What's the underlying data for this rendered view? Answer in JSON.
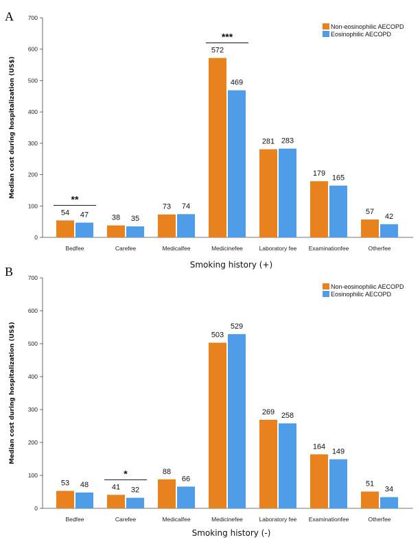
{
  "colors": {
    "non_eosinophilic": "#E8821E",
    "eosinophilic": "#4F9DE8"
  },
  "chart_data": [
    {
      "panel": "A",
      "type": "bar",
      "categories": [
        "Bedfee",
        "Carefee",
        "Medicalfee",
        "Medicinefee",
        "Laboratory fee",
        "Examinationfee",
        "Otherfee"
      ],
      "series": [
        {
          "name": "Non-eosinophilic AECOPD",
          "values": [
            54,
            38,
            73,
            572,
            281,
            179,
            57
          ]
        },
        {
          "name": "Eosinophilic AECOPD",
          "values": [
            47,
            35,
            74,
            469,
            283,
            165,
            42
          ]
        }
      ],
      "xlabel": "Smoking history (+)",
      "ylabel": "Median cost during hospitalization (US$)",
      "ylim": [
        0,
        700
      ],
      "yticks": [
        0,
        100,
        200,
        300,
        400,
        500,
        600,
        700
      ],
      "legend_position": "top-right",
      "significance": [
        {
          "category_index": 0,
          "label": "**"
        },
        {
          "category_index": 3,
          "label": "***"
        }
      ]
    },
    {
      "panel": "B",
      "type": "bar",
      "categories": [
        "Bedfee",
        "Carefee",
        "Medicalfee",
        "Medicinefee",
        "Laboratory fee",
        "Examinationfee",
        "Otherfee"
      ],
      "series": [
        {
          "name": "Non-eosinophilic AECOPD",
          "values": [
            53,
            41,
            88,
            503,
            269,
            164,
            51
          ]
        },
        {
          "name": "Eosinophilic AECOPD",
          "values": [
            48,
            32,
            66,
            529,
            258,
            149,
            34
          ]
        }
      ],
      "xlabel": "Smoking history (-)",
      "ylabel": "Median cost during hospitalization (US$)",
      "ylim": [
        0,
        700
      ],
      "yticks": [
        0,
        100,
        200,
        300,
        400,
        500,
        600,
        700
      ],
      "legend_position": "top-right",
      "significance": [
        {
          "category_index": 1,
          "label": "*"
        }
      ]
    }
  ]
}
